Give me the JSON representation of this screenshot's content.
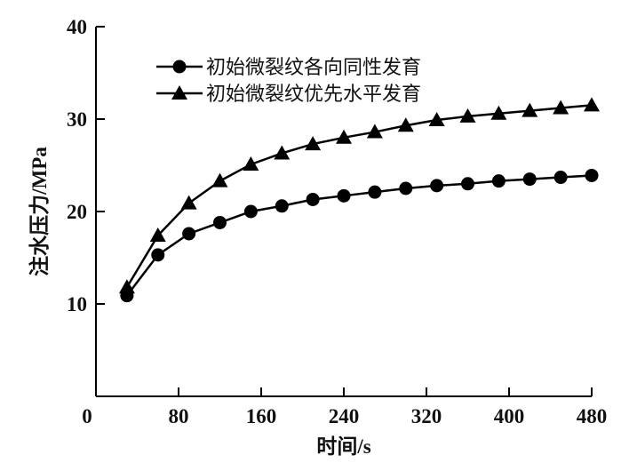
{
  "chart_data": {
    "type": "line",
    "title": "",
    "xlabel": "时间/s",
    "ylabel": "注水压力/MPa",
    "xlim": [
      0,
      480
    ],
    "ylim": [
      0,
      40
    ],
    "xticks": [
      0,
      80,
      160,
      240,
      320,
      400,
      480
    ],
    "yticks": [
      10,
      20,
      30,
      40
    ],
    "grid": false,
    "legend_position": "top-left",
    "x": [
      30,
      60,
      90,
      120,
      150,
      180,
      210,
      240,
      270,
      300,
      330,
      360,
      390,
      420,
      450,
      480
    ],
    "series": [
      {
        "name": "初始微裂纹各向同性发育",
        "marker": "circle",
        "values": [
          10.9,
          15.3,
          17.6,
          18.8,
          20.0,
          20.6,
          21.3,
          21.7,
          22.1,
          22.5,
          22.8,
          23.0,
          23.3,
          23.5,
          23.7,
          23.9
        ]
      },
      {
        "name": "初始微裂纹优先水平发育",
        "marker": "triangle",
        "values": [
          11.8,
          17.4,
          20.9,
          23.3,
          25.1,
          26.3,
          27.3,
          28.0,
          28.6,
          29.3,
          29.9,
          30.3,
          30.6,
          30.9,
          31.2,
          31.5
        ]
      }
    ]
  }
}
